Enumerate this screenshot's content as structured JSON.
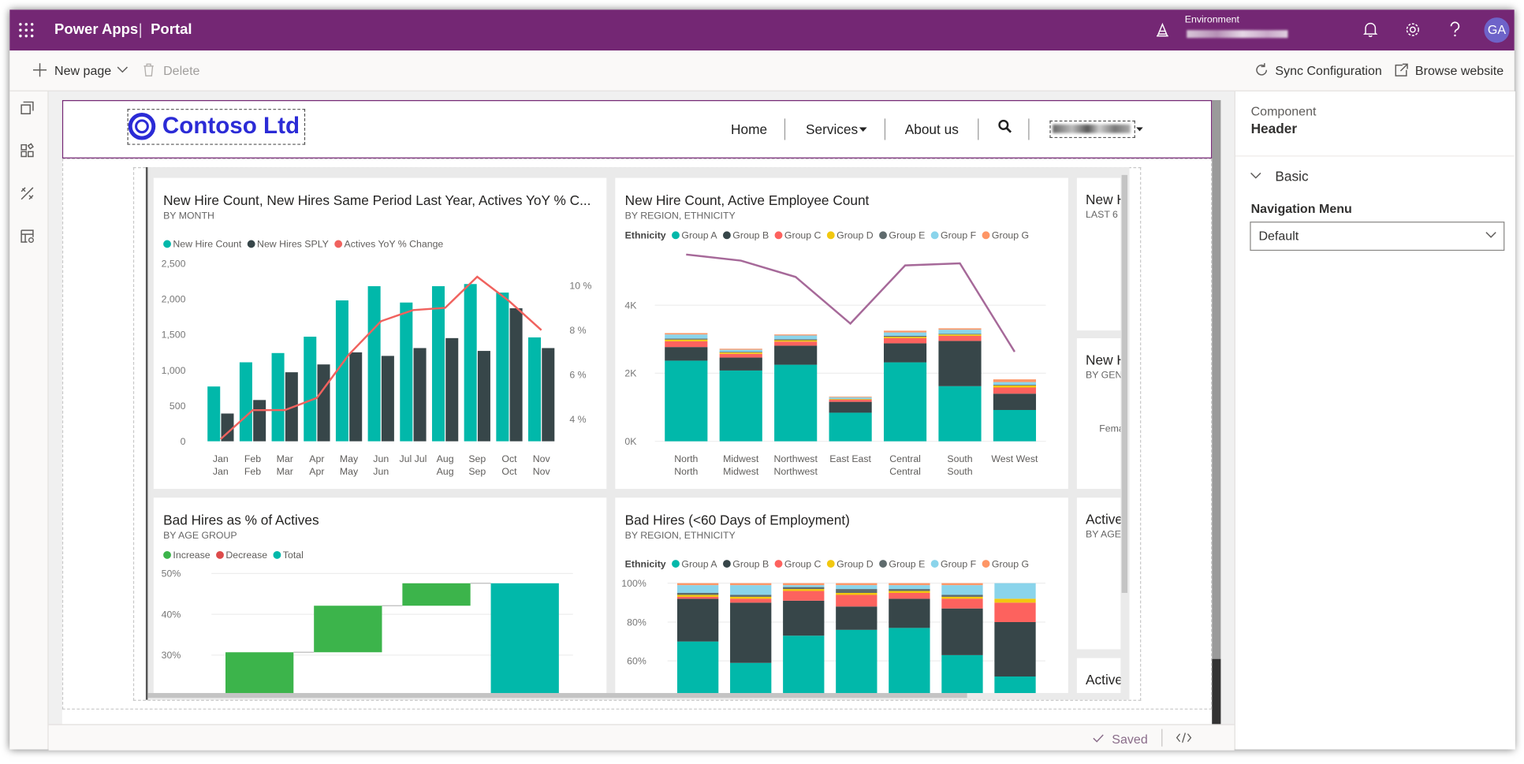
{
  "app": {
    "name": "Power Apps",
    "section": "Portal",
    "environment_label": "Environment",
    "avatar": "GA"
  },
  "toolbar": {
    "new_page": "New page",
    "delete": "Delete",
    "sync": "Sync Configuration",
    "browse": "Browse website"
  },
  "site": {
    "logo": "Contoso Ltd",
    "nav": [
      "Home",
      "Services",
      "About us"
    ]
  },
  "panel": {
    "label": "Component",
    "component": "Header",
    "section": "Basic",
    "field_label": "Navigation Menu",
    "field_value": "Default"
  },
  "status": {
    "saved": "Saved"
  },
  "side_tiles": [
    {
      "title": "New H",
      "subtitle": "LAST 6"
    },
    {
      "title": "New H",
      "subtitle": "BY GEN",
      "label": "Fema"
    },
    {
      "title": "Active",
      "subtitle": "BY AGE"
    },
    {
      "title": "Active"
    }
  ],
  "chart_data": [
    {
      "type": "combo",
      "title": "New Hire Count, New Hires Same Period Last Year, Actives YoY % C...",
      "subtitle": "BY MONTH",
      "categories": [
        [
          "Jan",
          "Jan"
        ],
        [
          "Feb",
          "Feb"
        ],
        [
          "Mar",
          "Mar"
        ],
        [
          "Apr",
          "Apr"
        ],
        [
          "May",
          "May"
        ],
        [
          "Jun",
          "Jun"
        ],
        [
          "Jul Jul"
        ],
        [
          "Aug",
          "Aug"
        ],
        [
          "Sep",
          "Sep"
        ],
        [
          "Oct",
          "Oct"
        ],
        [
          "Nov",
          "Nov"
        ]
      ],
      "series": [
        {
          "name": "New Hire Count",
          "type": "bar",
          "color": "#01b8aa",
          "values": [
            770,
            1110,
            1240,
            1470,
            1980,
            2180,
            1950,
            2180,
            2210,
            2090,
            1460
          ]
        },
        {
          "name": "New Hires SPLY",
          "type": "bar",
          "color": "#374649",
          "values": [
            390,
            580,
            970,
            1080,
            1250,
            1200,
            1310,
            1450,
            1270,
            1870,
            1310
          ]
        },
        {
          "name": "Actives YoY % Change",
          "type": "line",
          "axis": "y2",
          "color": "#f0625e",
          "values": [
            3.1,
            4.4,
            4.4,
            4.95,
            6.9,
            8.4,
            8.9,
            9.0,
            10.4,
            9.3,
            8.0
          ]
        }
      ],
      "ylim": [
        0,
        2500
      ],
      "yticks": [
        0,
        500,
        {
          "value": 1000,
          "label": "1,000"
        },
        {
          "value": 1500,
          "label": "1,500"
        },
        {
          "value": 2000,
          "label": "2,000"
        },
        {
          "value": 2500,
          "label": "2,500"
        }
      ],
      "y2lim": [
        3,
        11
      ],
      "y2ticks": [
        {
          "value": 4,
          "label": "4 %"
        },
        {
          "value": 6,
          "label": "6 %"
        },
        {
          "value": 8,
          "label": "8 %"
        },
        {
          "value": 10,
          "label": "10 %"
        }
      ],
      "grid": false
    },
    {
      "type": "stacked_bar",
      "title": "New Hire Count, Active Employee Count",
      "subtitle": "BY REGION, ETHNICITY",
      "legend_title": "Ethnicity",
      "categories": [
        [
          "North",
          "North"
        ],
        [
          "Midwest",
          "Midwest"
        ],
        [
          "Northwest",
          "Northwest"
        ],
        [
          "East East"
        ],
        [
          "Central",
          "Central"
        ],
        [
          "South",
          "South"
        ],
        [
          "West West"
        ]
      ],
      "series": [
        {
          "name": "Group A",
          "color": "#01b8aa",
          "values": [
            2370,
            2080,
            2250,
            840,
            2320,
            1620,
            920
          ]
        },
        {
          "name": "Group B",
          "color": "#374649",
          "values": [
            400,
            380,
            560,
            320,
            560,
            1330,
            480
          ]
        },
        {
          "name": "Group C",
          "color": "#fd625e",
          "values": [
            170,
            110,
            120,
            60,
            150,
            150,
            180
          ]
        },
        {
          "name": "Group D",
          "color": "#f2c80f",
          "values": [
            50,
            40,
            40,
            20,
            40,
            40,
            60
          ]
        },
        {
          "name": "Group E",
          "color": "#5f6b6d",
          "values": [
            30,
            20,
            30,
            10,
            30,
            20,
            20
          ]
        },
        {
          "name": "Group F",
          "color": "#8ad4eb",
          "values": [
            120,
            60,
            110,
            40,
            100,
            120,
            80
          ]
        },
        {
          "name": "Group G",
          "color": "#fe9666",
          "values": [
            40,
            30,
            30,
            20,
            50,
            40,
            80
          ]
        }
      ],
      "line": {
        "color": "#a66999",
        "values": [
          5490,
          5310,
          4830,
          3460,
          5170,
          5230,
          2630
        ]
      },
      "ylim": [
        0,
        5700
      ],
      "yticks": [
        {
          "value": 0,
          "label": "0K"
        },
        {
          "value": 2000,
          "label": "2K"
        },
        {
          "value": 4000,
          "label": "4K"
        }
      ],
      "grid": true
    },
    {
      "type": "waterfall",
      "title": "Bad Hires as % of Actives",
      "subtitle": "BY AGE GROUP",
      "categories": [
        null,
        null,
        null,
        null
      ],
      "series": [
        {
          "name": "Increase",
          "color": "#3cb44b",
          "values": [
            30.7,
            11.4,
            5.5,
            null
          ]
        },
        {
          "name": "Decrease",
          "color": "#dd4b4b",
          "values": [
            null,
            null,
            null,
            null
          ]
        },
        {
          "name": "Total",
          "color": "#01b8aa",
          "values": [
            null,
            null,
            null,
            47.6
          ]
        }
      ],
      "ylim": [
        0,
        52
      ],
      "yticks": [
        {
          "value": 30,
          "label": "30%"
        },
        {
          "value": 40,
          "label": "40%"
        },
        {
          "value": 50,
          "label": "50%"
        }
      ],
      "grid": true
    },
    {
      "type": "stacked_bar",
      "title": "Bad Hires (<60 Days of Employment)",
      "subtitle": "BY REGION, ETHNICITY",
      "legend_title": "Ethnicity",
      "categories": [
        null,
        null,
        null,
        null,
        null,
        null,
        null
      ],
      "series": [
        {
          "name": "Group A",
          "color": "#01b8aa",
          "values": [
            70,
            59,
            73,
            76,
            77,
            63,
            52
          ]
        },
        {
          "name": "Group B",
          "color": "#374649",
          "values": [
            22,
            31,
            18,
            12,
            15,
            24,
            28
          ]
        },
        {
          "name": "Group C",
          "color": "#fd625e",
          "values": [
            1,
            2,
            5,
            6,
            3,
            5,
            10
          ]
        },
        {
          "name": "Group D",
          "color": "#f2c80f",
          "values": [
            1,
            1,
            1,
            1,
            1,
            1,
            2
          ]
        },
        {
          "name": "Group E",
          "color": "#5f6b6d",
          "values": [
            1,
            1,
            1,
            2,
            1,
            1,
            0
          ]
        },
        {
          "name": "Group F",
          "color": "#8ad4eb",
          "values": [
            4,
            5,
            1,
            2,
            2,
            5,
            8
          ]
        },
        {
          "name": "Group G",
          "color": "#fe9666",
          "values": [
            1,
            1,
            1,
            1,
            1,
            1,
            0
          ]
        }
      ],
      "ylim": [
        0,
        100
      ],
      "yticks": [
        {
          "value": 60,
          "label": "60%"
        },
        {
          "value": 80,
          "label": "80%"
        },
        {
          "value": 100,
          "label": "100%"
        }
      ],
      "grid": true
    }
  ]
}
